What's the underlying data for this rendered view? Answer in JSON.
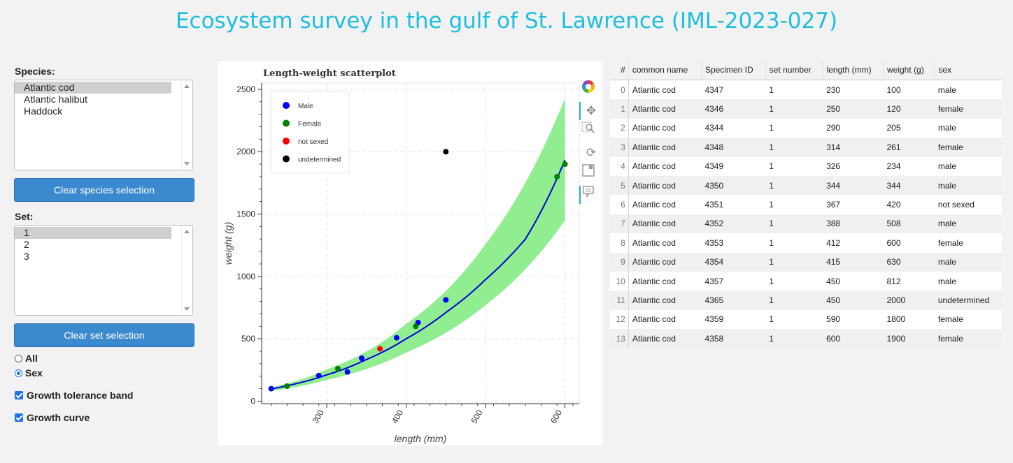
{
  "header": {
    "title": "Ecosystem survey in the gulf of St. Lawrence (IML-2023-027)"
  },
  "sidebar": {
    "species_label": "Species:",
    "species_options": [
      {
        "label": "Atlantic cod",
        "selected": true
      },
      {
        "label": "Atlantic halibut",
        "selected": false
      },
      {
        "label": "Haddock",
        "selected": false
      }
    ],
    "clear_species_label": "Clear species selection",
    "set_label": "Set:",
    "set_options": [
      {
        "label": "1",
        "selected": true
      },
      {
        "label": "2",
        "selected": false
      },
      {
        "label": "3",
        "selected": false
      }
    ],
    "clear_set_label": "Clear set selection",
    "radio_all_label": "All",
    "radio_sex_label": "Sex",
    "growth_band_label": "Growth tolerance band",
    "growth_curve_label": "Growth curve"
  },
  "chart_data": {
    "type": "scatter",
    "title": "Length-weight scatterplot",
    "xlabel": "length (mm)",
    "ylabel": "weight (g)",
    "xlim": [
      218,
      618
    ],
    "ylim": [
      -20,
      2550
    ],
    "x_ticks": [
      300,
      400,
      500,
      600
    ],
    "y_ticks": [
      0,
      500,
      1000,
      1500,
      2000,
      2500
    ],
    "grid": true,
    "legend_position": "top-left",
    "series": [
      {
        "name": "Male",
        "color": "#0000ff",
        "points": [
          [
            230,
            100
          ],
          [
            290,
            205
          ],
          [
            326,
            234
          ],
          [
            344,
            344
          ],
          [
            388,
            508
          ],
          [
            415,
            630
          ],
          [
            450,
            812
          ]
        ]
      },
      {
        "name": "Female",
        "color": "#008000",
        "points": [
          [
            250,
            120
          ],
          [
            314,
            261
          ],
          [
            412,
            600
          ],
          [
            590,
            1800
          ],
          [
            600,
            1900
          ]
        ]
      },
      {
        "name": "not sexed",
        "color": "#ff0000",
        "points": [
          [
            367,
            420
          ]
        ]
      },
      {
        "name": "undetermined",
        "color": "#000000",
        "points": [
          [
            450,
            2000
          ]
        ]
      }
    ],
    "growth_curve": {
      "color": "#0000dd",
      "x": [
        230,
        250,
        300,
        350,
        400,
        450,
        500,
        550,
        600
      ],
      "y": [
        97,
        124,
        211,
        334,
        500,
        711,
        975,
        1298,
        1934
      ]
    },
    "tolerance_band": {
      "color": "#90ee90",
      "x": [
        230,
        300,
        400,
        500,
        600
      ],
      "upper": [
        112,
        255,
        620,
        1260,
        2430
      ],
      "lower": [
        82,
        170,
        390,
        770,
        1450
      ]
    }
  },
  "plot_tools": [
    "color-wheel-icon",
    "pan-icon",
    "box-zoom-icon",
    "reset-icon",
    "save-icon",
    "hover-icon"
  ],
  "table": {
    "headers": [
      "#",
      "common name",
      "Specimen ID",
      "set number",
      "length (mm)",
      "weight (g)",
      "sex"
    ],
    "rows": [
      [
        "0",
        "Atlantic cod",
        "4347",
        "1",
        "230",
        "100",
        "male"
      ],
      [
        "1",
        "Atlantic cod",
        "4346",
        "1",
        "250",
        "120",
        "female"
      ],
      [
        "2",
        "Atlantic cod",
        "4344",
        "1",
        "290",
        "205",
        "male"
      ],
      [
        "3",
        "Atlantic cod",
        "4348",
        "1",
        "314",
        "261",
        "female"
      ],
      [
        "4",
        "Atlantic cod",
        "4349",
        "1",
        "326",
        "234",
        "male"
      ],
      [
        "5",
        "Atlantic cod",
        "4350",
        "1",
        "344",
        "344",
        "male"
      ],
      [
        "6",
        "Atlantic cod",
        "4351",
        "1",
        "367",
        "420",
        "not sexed"
      ],
      [
        "7",
        "Atlantic cod",
        "4352",
        "1",
        "388",
        "508",
        "male"
      ],
      [
        "8",
        "Atlantic cod",
        "4353",
        "1",
        "412",
        "600",
        "female"
      ],
      [
        "9",
        "Atlantic cod",
        "4354",
        "1",
        "415",
        "630",
        "male"
      ],
      [
        "10",
        "Atlantic cod",
        "4357",
        "1",
        "450",
        "812",
        "male"
      ],
      [
        "11",
        "Atlantic cod",
        "4365",
        "1",
        "450",
        "2000",
        "undetermined"
      ],
      [
        "12",
        "Atlantic cod",
        "4359",
        "1",
        "590",
        "1800",
        "female"
      ],
      [
        "13",
        "Atlantic cod",
        "4358",
        "1",
        "600",
        "1900",
        "female"
      ]
    ]
  }
}
